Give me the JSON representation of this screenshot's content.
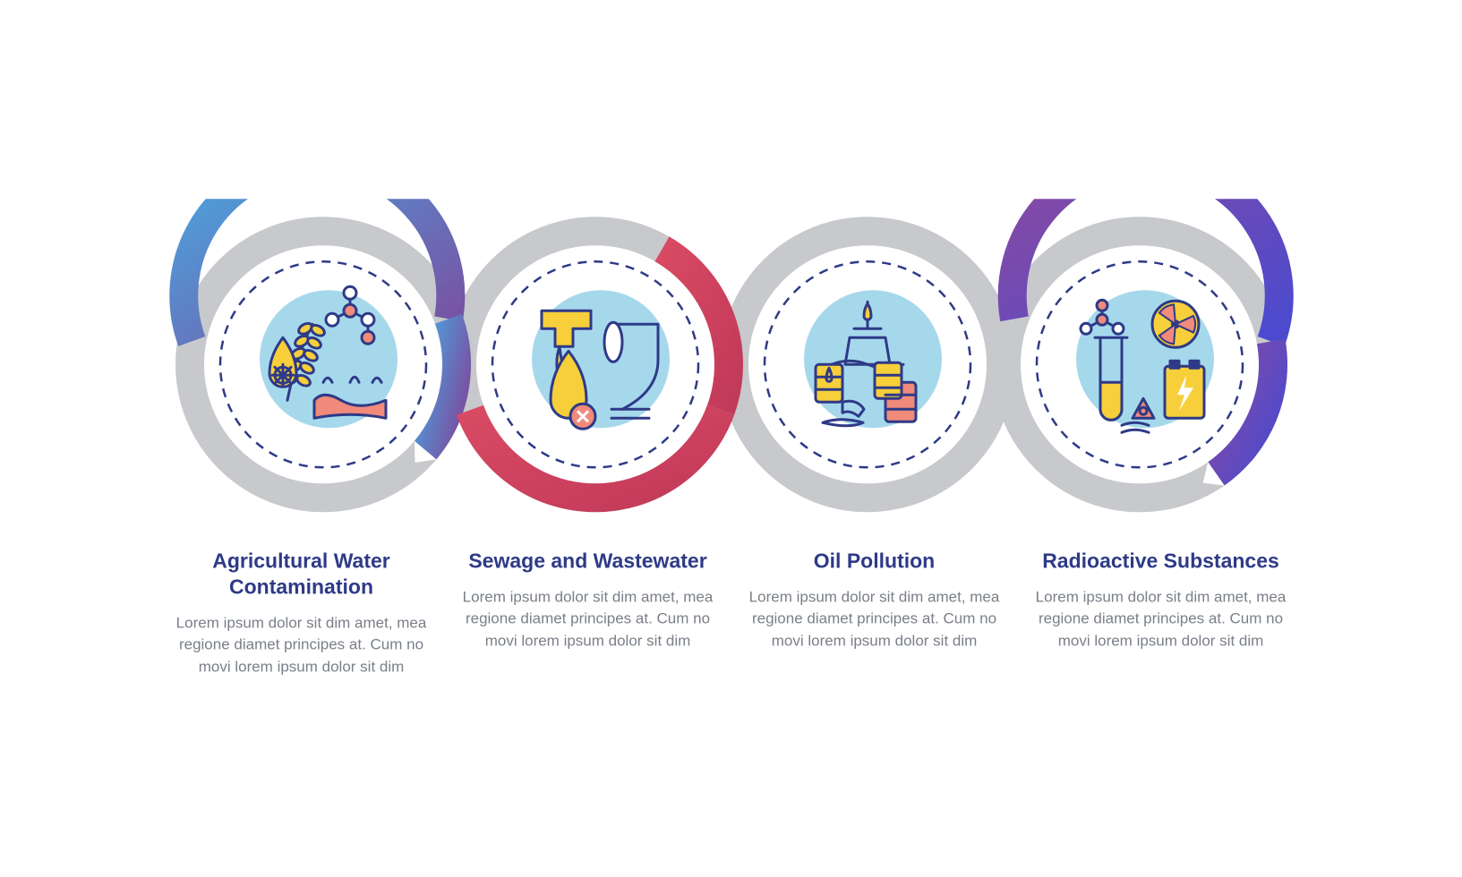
{
  "infographic": {
    "type": "infographic",
    "background_color": "#ffffff",
    "ring_diameter": 330,
    "ring_stroke": 32,
    "ring_overlap": 26,
    "dashed_inner_color": "#2e3a87",
    "dashed_inner_dash": "10 8",
    "inner_bg_color": "#a6d8ec",
    "gray_ring_color": "#c7c9cc",
    "title_color": "#2e3a87",
    "body_color": "#7a7f88",
    "title_fontsize": 23,
    "body_fontsize": 17,
    "line_stroke": "#2e3a87",
    "accent_yellow": "#f6cf3a",
    "accent_salmon": "#f08a7a",
    "gradients": {
      "g1": [
        "#4aa6e0",
        "#7a4ea0"
      ],
      "g2": [
        "#d94a63",
        "#c23a5a"
      ],
      "g3": [
        "#c7c9cc",
        "#c7c9cc"
      ],
      "g4": [
        "#8a4aa0",
        "#4a4ad0"
      ]
    },
    "items": [
      {
        "title": "Agricultural Water Contamination",
        "body": "Lorem ipsum dolor sit dim amet, mea regione diamet principes at. Cum no movi lorem ipsum dolor sit dim",
        "ring_gradient": "g1",
        "icon": "agriculture"
      },
      {
        "title": "Sewage and Wastewater",
        "body": "Lorem ipsum dolor sit dim amet, mea regione diamet principes at. Cum no movi lorem ipsum dolor sit dim",
        "ring_gradient": "g2",
        "icon": "sewage"
      },
      {
        "title": "Oil Pollution",
        "body": "Lorem ipsum dolor sit dim amet, mea regione diamet principes at. Cum no movi lorem ipsum dolor sit dim",
        "ring_gradient": "g3",
        "icon": "oil"
      },
      {
        "title": "Radioactive Substances",
        "body": "Lorem ipsum dolor sit dim amet, mea regione diamet principes at. Cum no movi lorem ipsum dolor sit dim",
        "ring_gradient": "g4",
        "icon": "radioactive"
      }
    ]
  }
}
